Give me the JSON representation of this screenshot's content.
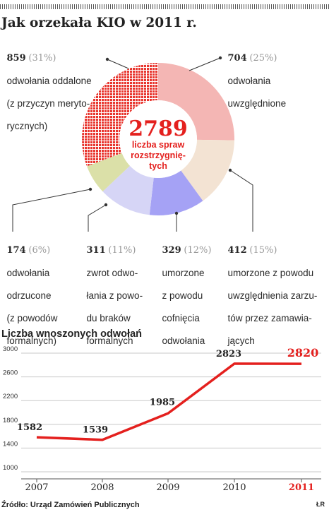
{
  "title": "Jak orzekała KIO w 2011 r.",
  "colors": {
    "oddalone": "#e8352e",
    "uwzglednione": "#f4b6b4",
    "umorzone_uwzgl": "#f3e3d3",
    "umorzone_cofn": "#a5a2f5",
    "zwrot": "#d6d5f6",
    "odrzucone": "#dbe0a8",
    "line": "#e4201e",
    "highlight": "#e4201e"
  },
  "chart_data": [
    {
      "type": "pie",
      "title": "Jak orzekała KIO w 2011 r.",
      "center_value": "2789",
      "center_label": [
        "liczba spraw",
        "rozstrzygnię-",
        "tych"
      ],
      "slices": [
        {
          "key": "uwzglednione",
          "value": 704,
          "pct": "(25%)",
          "lines": [
            "odwołania",
            "uwzględnione"
          ]
        },
        {
          "key": "umorzone_uwzgl",
          "value": 412,
          "pct": "(15%)",
          "lines": [
            "umorzone z powodu",
            "uwzględnienia zarzu-",
            "tów przez zamawia-",
            "jących"
          ]
        },
        {
          "key": "umorzone_cofn",
          "value": 329,
          "pct": "(12%)",
          "lines": [
            "umorzone",
            "z powodu",
            "cofnięcia",
            "odwołania"
          ]
        },
        {
          "key": "zwrot",
          "value": 311,
          "pct": "(11%)",
          "lines": [
            "zwrot odwo-",
            "łania z powo-",
            "du braków",
            "formalnych"
          ]
        },
        {
          "key": "odrzucone",
          "value": 174,
          "pct": "(6%)",
          "lines": [
            "odwołania",
            "odrzucone",
            "(z powodów",
            "formalnych)"
          ]
        },
        {
          "key": "oddalone",
          "value": 859,
          "pct": "(31%)",
          "lines": [
            "odwołania oddalone",
            "(z przyczyn meryto-",
            "rycznych)"
          ]
        }
      ]
    },
    {
      "type": "line",
      "title": "Liczba wnoszonych odwołań",
      "x": [
        "2007",
        "2008",
        "2009",
        "2010",
        "2011"
      ],
      "values": [
        1582,
        1539,
        1985,
        2823,
        2820
      ],
      "value_labels": [
        "1582",
        "1539",
        "1985",
        "2823",
        "2820"
      ],
      "yticks": [
        "3000",
        "2600",
        "2200",
        "1800",
        "1400",
        "1000"
      ],
      "ylim": [
        1000,
        3000
      ]
    }
  ],
  "source": "Źródło: Urząd Zamówień Publicznych",
  "credit": "ŁR"
}
